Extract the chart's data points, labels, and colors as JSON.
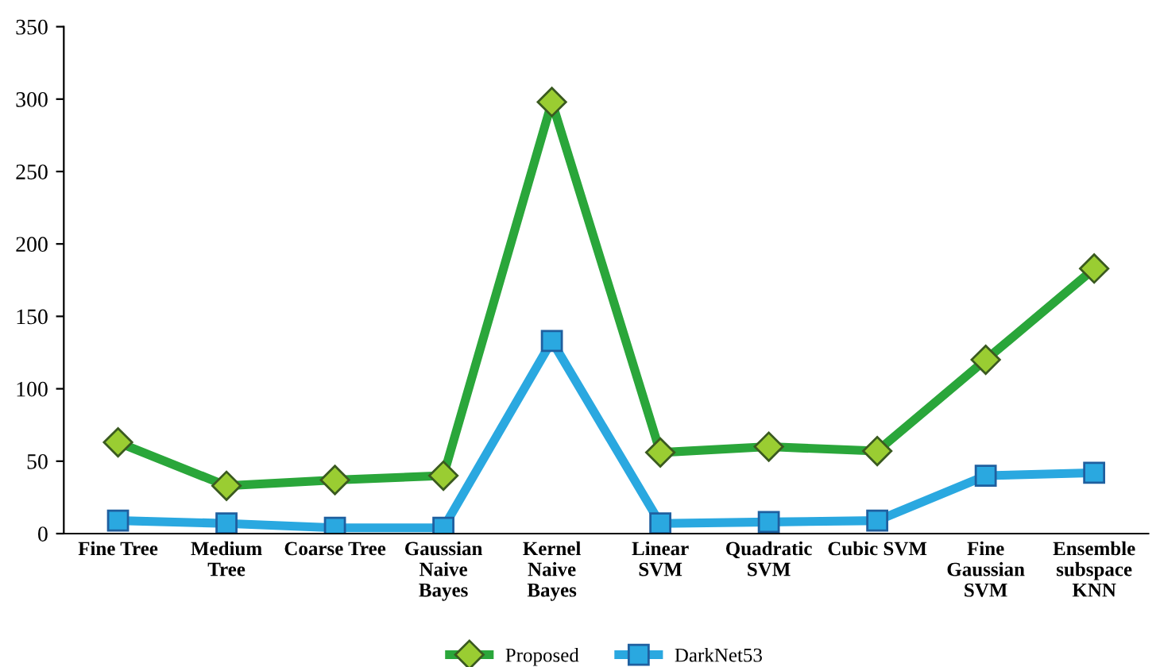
{
  "chart_data": {
    "type": "line",
    "categories": [
      "Fine Tree",
      "Medium\nTree",
      "Coarse Tree",
      "Gaussian\nNaive\nBayes",
      "Kernel\nNaive\nBayes",
      "Linear\nSVM",
      "Quadratic\nSVM",
      "Cubic SVM",
      "Fine\nGaussian\nSVM",
      "Ensemble\nsubspace\nKNN"
    ],
    "series": [
      {
        "name": "Proposed",
        "color": "#2aa63a",
        "marker": "diamond",
        "values": [
          63,
          33,
          37,
          40,
          298,
          56,
          60,
          57,
          120,
          183
        ]
      },
      {
        "name": "DarkNet53",
        "color": "#2aa8e0",
        "marker": "square",
        "values": [
          9,
          7,
          4,
          4,
          133,
          7,
          8,
          9,
          40,
          42
        ]
      }
    ],
    "ylim": [
      0,
      350
    ],
    "yticks": [
      0,
      50,
      100,
      150,
      200,
      250,
      300,
      350
    ],
    "grid": false,
    "legend": "bottom",
    "line_style": "solid"
  }
}
